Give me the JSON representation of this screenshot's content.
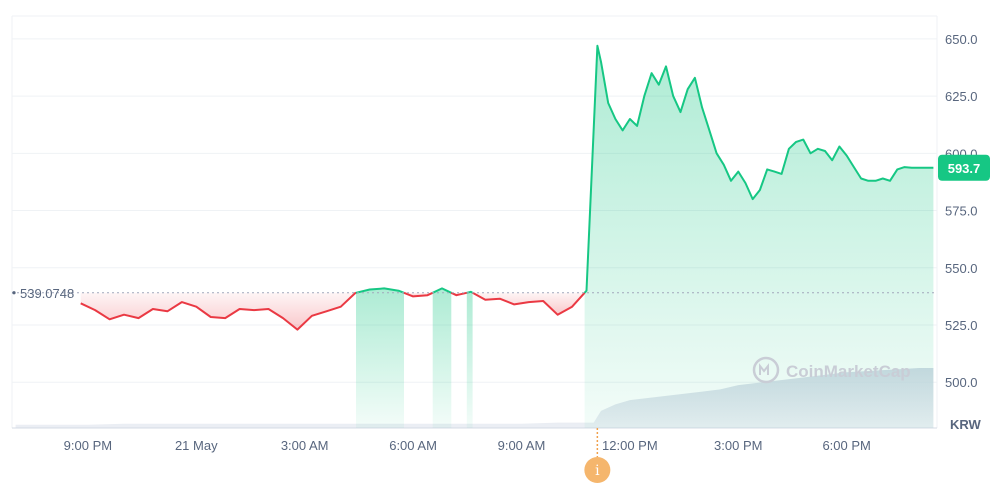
{
  "chart_data": {
    "type": "area",
    "currency": "KRW",
    "baseline_value": 539.0748,
    "baseline_label": "539.0748",
    "current_value": 593.7,
    "current_label": "593.7",
    "watermark": "CoinMarketCap",
    "info_marker": "i",
    "y_ticks": [
      "650.0",
      "625.0",
      "600.0",
      "575.0",
      "550.0",
      "525.0",
      "500.0"
    ],
    "y_tick_values": [
      650,
      625,
      600,
      575,
      550,
      525,
      500
    ],
    "ylim": [
      480,
      660
    ],
    "x_ticks": [
      "9:00 PM",
      "21 May",
      "3:00 AM",
      "6:00 AM",
      "9:00 AM",
      "12:00 PM",
      "3:00 PM",
      "6:00 PM"
    ],
    "x_tick_hours": [
      21,
      24,
      27,
      30,
      33,
      36,
      39,
      42
    ],
    "xlim_hours": [
      18.9,
      44.5
    ],
    "grid": true,
    "colors": {
      "up": "#16c784",
      "down": "#ea3943",
      "baseline": "#a1a7bb",
      "text": "#58667e",
      "volume": "#cfd6e4"
    },
    "series": [
      {
        "x_hours": [
          20.8,
          21.2,
          21.6,
          22.0,
          22.4,
          22.8,
          23.2,
          23.6,
          24.0,
          24.4,
          24.8,
          25.2,
          25.6,
          26.0,
          26.4,
          26.8,
          27.2,
          27.6,
          28.0,
          28.4,
          28.8,
          29.2,
          29.6,
          30.0,
          30.4,
          30.8,
          31.2,
          31.6,
          32.0,
          32.4,
          32.8,
          33.2,
          33.6,
          34.0,
          34.4,
          34.8,
          35.1,
          35.2,
          35.4,
          35.6,
          35.8,
          36.0,
          36.2,
          36.4,
          36.6,
          36.8,
          37.0,
          37.2,
          37.4,
          37.6,
          37.8,
          38.0,
          38.2,
          38.4,
          38.6,
          38.8,
          39.0,
          39.2,
          39.4,
          39.6,
          39.8,
          40.0,
          40.2,
          40.4,
          40.6,
          40.8,
          41.0,
          41.2,
          41.4,
          41.6,
          41.8,
          42.0,
          42.2,
          42.4,
          42.6,
          42.8,
          43.0,
          43.2,
          43.4,
          43.6,
          43.8,
          44.0,
          44.2,
          44.4
        ],
        "y": [
          534.5,
          531.5,
          527.5,
          529.5,
          528.0,
          532.0,
          531.0,
          535.0,
          533.0,
          528.5,
          528.0,
          532.0,
          531.5,
          532.0,
          528.0,
          523.0,
          529.0,
          531.0,
          533.0,
          539.0,
          540.5,
          541.0,
          540.0,
          537.5,
          538.0,
          541.0,
          538.0,
          539.5,
          536.0,
          536.5,
          534.0,
          535.0,
          535.5,
          529.5,
          533.0,
          540.0,
          647.0,
          640.0,
          622.0,
          615.0,
          610.0,
          615.0,
          612.0,
          625.0,
          635.0,
          630.0,
          638.0,
          625.0,
          618.0,
          628.0,
          633.0,
          620.0,
          610.0,
          600.0,
          595.0,
          588.0,
          592.0,
          587.0,
          580.0,
          584.0,
          593.0,
          592.0,
          591.0,
          602.0,
          605.0,
          606.0,
          600.0,
          602.0,
          601.0,
          597.0,
          603.0,
          599.0,
          594.0,
          589.0,
          588.0,
          588.0,
          589.0,
          588.0,
          593.0,
          594.0,
          593.7,
          593.7,
          593.7,
          593.7
        ]
      }
    ],
    "volume": {
      "x_hours": [
        19.0,
        20.0,
        21.0,
        22.0,
        23.0,
        24.0,
        25.0,
        26.0,
        27.0,
        28.0,
        29.0,
        30.0,
        31.0,
        32.0,
        33.0,
        34.0,
        35.0,
        35.2,
        35.6,
        36.0,
        36.5,
        37.0,
        37.5,
        38.0,
        38.5,
        39.0,
        39.5,
        40.0,
        40.5,
        41.0,
        41.5,
        42.0,
        42.5,
        43.0,
        43.5,
        44.0,
        44.4
      ],
      "values": [
        1.5,
        1.5,
        1.5,
        2.0,
        2.0,
        2.0,
        2.0,
        2.0,
        2.0,
        2.0,
        2.0,
        2.0,
        2.0,
        2.0,
        2.0,
        2.5,
        2.5,
        8.0,
        11.0,
        13.0,
        14.0,
        15.0,
        16.0,
        17.0,
        18.0,
        20.0,
        21.0,
        22.0,
        23.0,
        24.0,
        25.0,
        26.0,
        26.5,
        27.0,
        27.5,
        28.0,
        28.0
      ]
    }
  }
}
